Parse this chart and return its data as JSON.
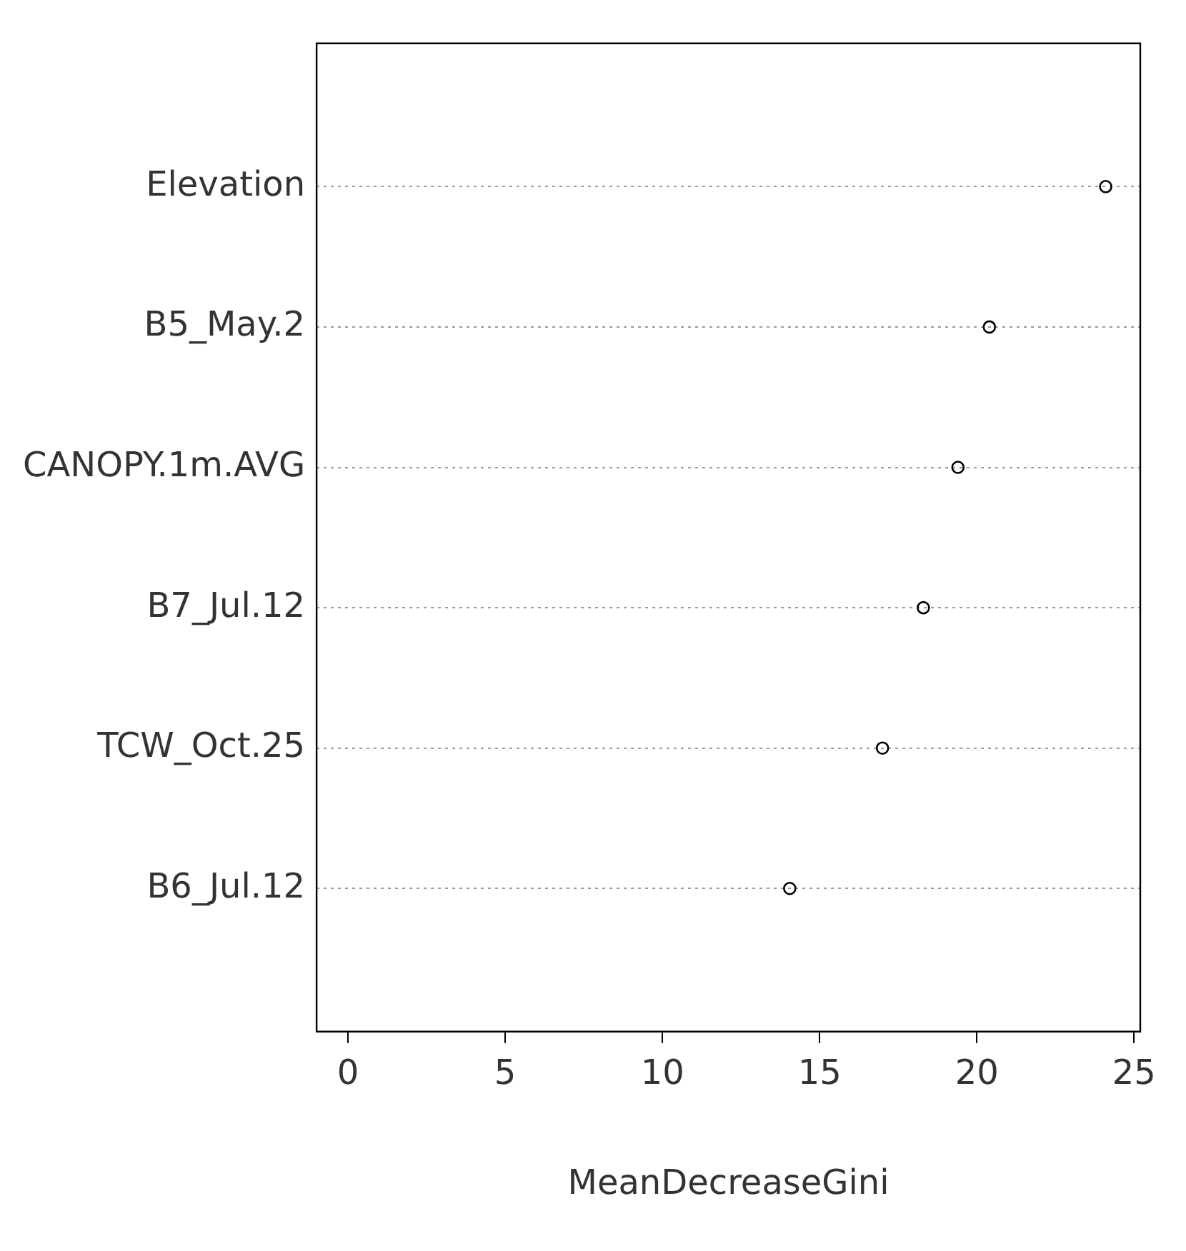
{
  "chart_data": {
    "type": "scatter",
    "orientation": "horizontal",
    "xlabel": "MeanDecreaseGini",
    "categories": [
      "Elevation",
      "B5_May.2",
      "CANOPY.1m.AVG",
      "B7_Jul.12",
      "TCW_Oct.25",
      "B6_Jul.12"
    ],
    "values": [
      24.1,
      20.4,
      19.4,
      18.3,
      17.0,
      14.05
    ],
    "color": "#000000",
    "marker": "circle",
    "grid": "y",
    "legend": false,
    "xlim": [
      -1,
      25.2
    ],
    "xticks": [
      0,
      5,
      10,
      15,
      20,
      25
    ]
  }
}
